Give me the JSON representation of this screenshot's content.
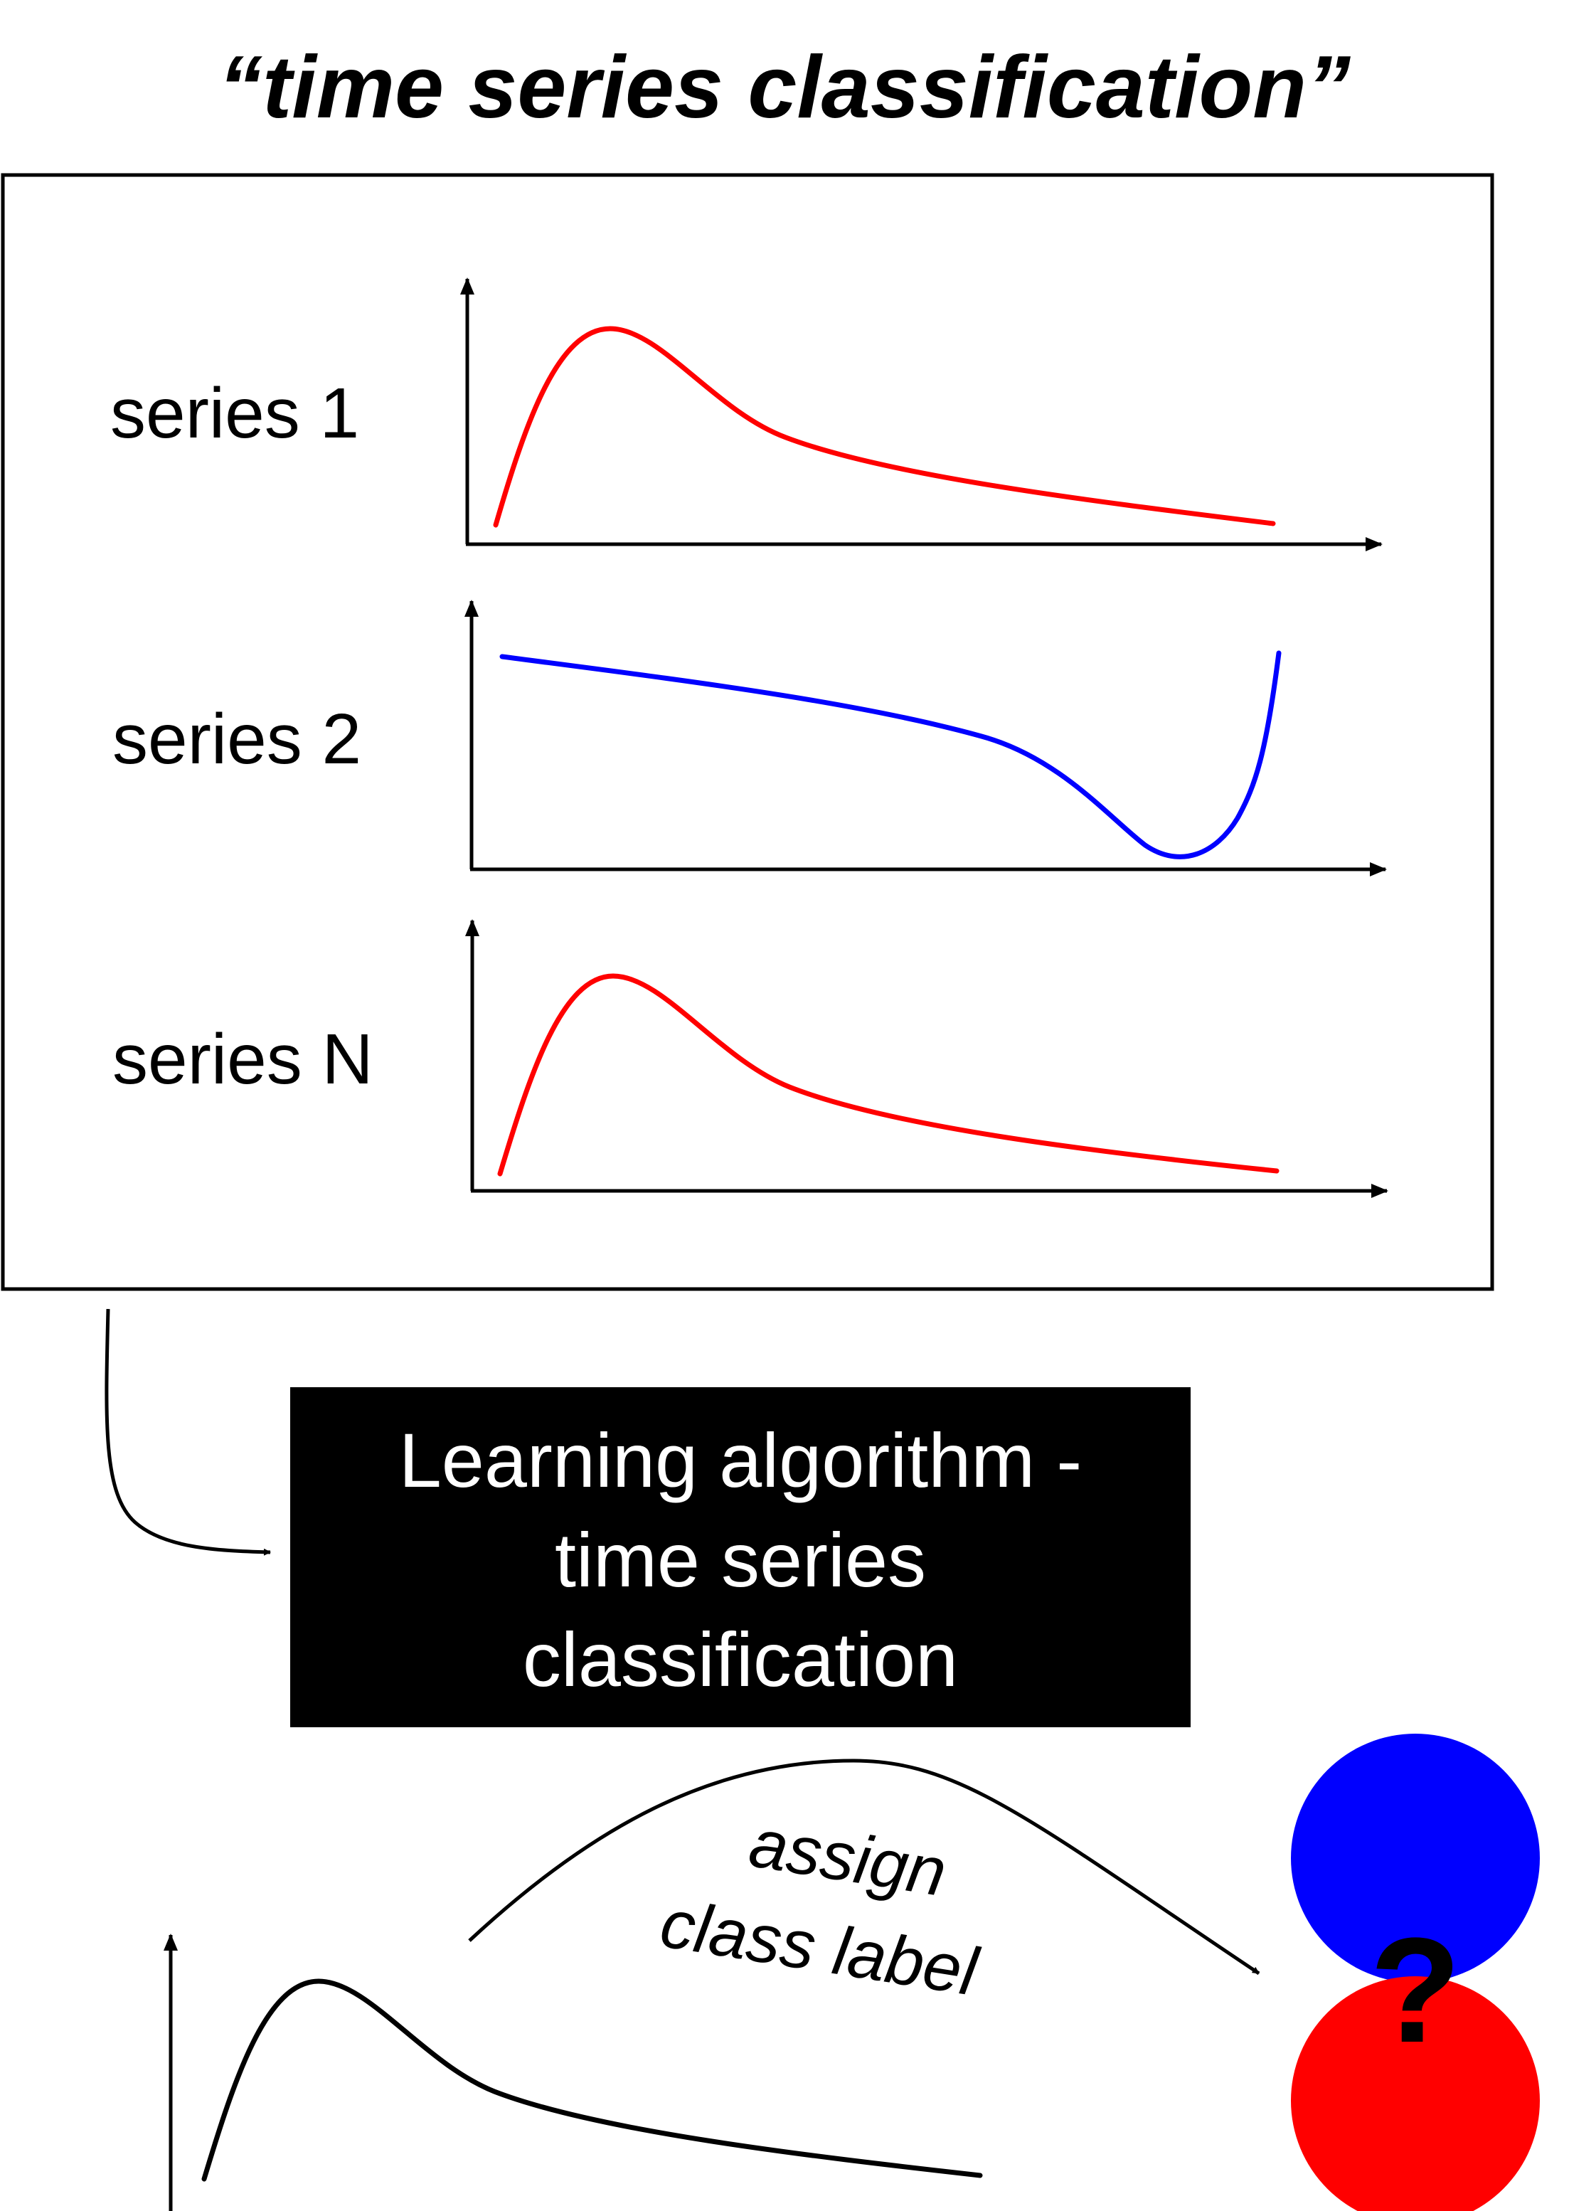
{
  "title": "“time series classification”",
  "colors": {
    "class_red": "#ff0000",
    "class_blue": "#0000ff",
    "algorithm_box": "#000000",
    "query_curve": "#000000"
  },
  "training_set": {
    "series": [
      {
        "label": "series 1",
        "shape": "peak-then-decay",
        "color": "#ff0000"
      },
      {
        "label": "series 2",
        "shape": "decline-dip-then-rise",
        "color": "#0000ff"
      },
      {
        "label": "series N",
        "shape": "peak-then-decay",
        "color": "#ff0000"
      }
    ]
  },
  "algorithm": {
    "lines": [
      "Learning algorithm -",
      "time series",
      "classification"
    ]
  },
  "assign": {
    "lines": [
      "assign",
      "class label"
    ]
  },
  "result": {
    "question_mark": "?",
    "class_circles": [
      "blue-class-circle",
      "red-class-circle"
    ]
  }
}
